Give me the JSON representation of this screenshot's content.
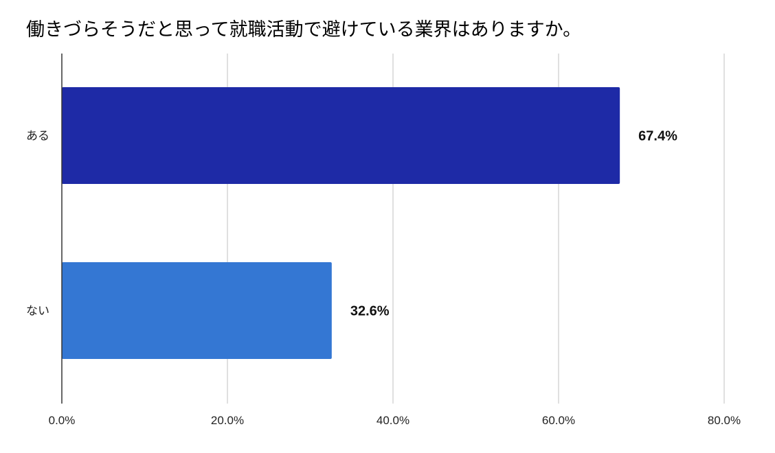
{
  "chart_data": {
    "type": "bar",
    "orientation": "horizontal",
    "title": "働きづらそうだと思って就職活動で避けている業界はありますか。",
    "categories": [
      "ある",
      "ない"
    ],
    "values": [
      67.4,
      32.6
    ],
    "data_labels": [
      "67.4%",
      "32.6%"
    ],
    "bar_colors": [
      "#1e2aa6",
      "#3477d3"
    ],
    "xlim": [
      0,
      80
    ],
    "x_ticks": [
      0,
      20,
      40,
      60,
      80
    ],
    "x_tick_labels": [
      "0.0%",
      "20.0%",
      "40.0%",
      "60.0%",
      "80.0%"
    ],
    "grid": true,
    "legend": "none"
  }
}
